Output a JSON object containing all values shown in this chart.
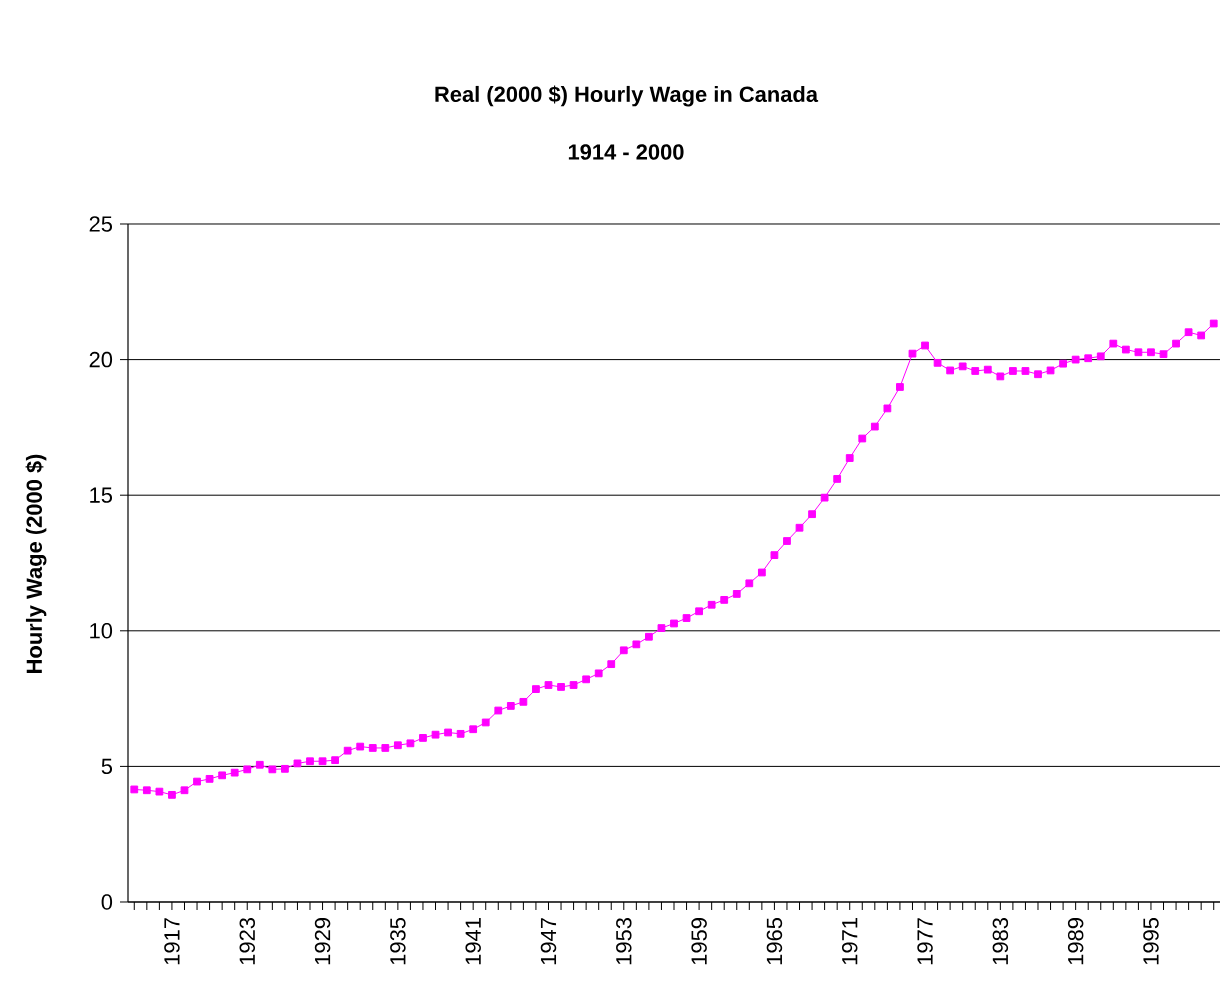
{
  "chart_data": {
    "type": "line",
    "title": "Real (2000 $) Hourly Wage in Canada",
    "subtitle": "1914 - 2000",
    "ylabel": "Hourly Wage (2000 $)",
    "categories": [
      null,
      null,
      null,
      "1917",
      null,
      null,
      null,
      null,
      null,
      "1923",
      null,
      null,
      null,
      null,
      null,
      "1929",
      null,
      null,
      null,
      null,
      null,
      "1935",
      null,
      null,
      null,
      null,
      null,
      "1941",
      null,
      null,
      null,
      null,
      null,
      "1947",
      null,
      null,
      null,
      null,
      null,
      "1953",
      null,
      null,
      null,
      null,
      null,
      "1959",
      null,
      null,
      null,
      null,
      null,
      "1965",
      null,
      null,
      null,
      null,
      null,
      "1971",
      null,
      null,
      null,
      null,
      null,
      "1977",
      null,
      null,
      null,
      null,
      null,
      "1983",
      null,
      null,
      null,
      null,
      null,
      "1989",
      null,
      null,
      null,
      null,
      null,
      "1995",
      null,
      null,
      null,
      null,
      null
    ],
    "series": [
      {
        "color": "#ff00ff",
        "values": [
          4.15,
          4.12,
          4.07,
          3.95,
          4.12,
          4.44,
          4.54,
          4.67,
          4.77,
          4.89,
          5.06,
          4.89,
          4.91,
          5.11,
          5.19,
          5.19,
          5.23,
          5.58,
          5.73,
          5.68,
          5.68,
          5.78,
          5.85,
          6.05,
          6.17,
          6.25,
          6.2,
          6.37,
          6.62,
          7.06,
          7.23,
          7.38,
          7.85,
          8.0,
          7.93,
          8.0,
          8.21,
          8.43,
          8.77,
          9.28,
          9.5,
          9.78,
          10.1,
          10.27,
          10.47,
          10.72,
          10.96,
          11.14,
          11.36,
          11.75,
          12.15,
          12.79,
          13.31,
          13.8,
          14.3,
          14.91,
          15.6,
          16.37,
          17.09,
          17.53,
          18.2,
          18.99,
          20.22,
          20.52,
          19.88,
          19.6,
          19.75,
          19.58,
          19.63,
          19.38,
          19.58,
          19.58,
          19.46,
          19.6,
          19.85,
          20.0,
          20.05,
          20.12,
          20.59,
          20.37,
          20.27,
          20.27,
          20.2,
          20.59,
          21.01,
          20.89,
          21.33
        ]
      }
    ],
    "ylim": [
      0,
      25
    ],
    "yticks": [
      0,
      5,
      10,
      15,
      20,
      25
    ],
    "grid": "y",
    "marker": "square",
    "line_style": "solid"
  }
}
